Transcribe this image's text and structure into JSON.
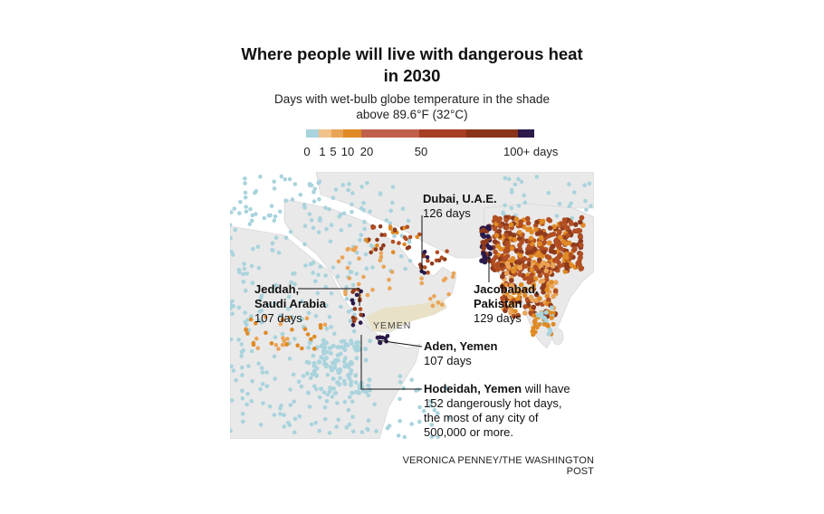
{
  "title_line1": "Where people will live with dangerous heat",
  "title_line2": "in 2030",
  "subtitle_line1": "Days with wet-bulb globe temperature in the shade",
  "subtitle_line2": "above 89.6°F (32°C)",
  "legend": {
    "ticks": [
      "0",
      "1",
      "5",
      "10",
      "20",
      "50",
      "100+ days"
    ],
    "colors": [
      "#a9d3dd",
      "#f2c28a",
      "#eaa458",
      "#df8a24",
      "#c0604a",
      "#a63e22",
      "#8a3419",
      "#2b1a4a"
    ]
  },
  "map": {
    "colors": {
      "land": "#e9e9e9",
      "water": "#ffffff",
      "yemen": "#e8e1c8",
      "none": "#a9d3dd",
      "low": "#eaa458",
      "mid": "#df8a24",
      "high": "#b14e22",
      "very_high": "#8f3a1c",
      "extreme": "#2b1a4a"
    },
    "country_label": "YEMEN"
  },
  "annotations": {
    "dubai": {
      "name": "Dubai, U.A.E.",
      "days": "126 days"
    },
    "jeddah": {
      "name_line1": "Jeddah,",
      "name_line2": "Saudi Arabia",
      "days": "107 days"
    },
    "jacobabad": {
      "name_line1": "Jacobabad,",
      "name_line2": "Pakistan",
      "days": "129 days"
    },
    "aden": {
      "name": "Aden, Yemen",
      "days": "107 days"
    },
    "hodeidah": {
      "name": "Hodeidah, Yemen",
      "text_line1": " will have",
      "text_line2": "152 dangerously hot days,",
      "text_line3": "the most of any city of",
      "text_line4": "500,000 or more."
    }
  },
  "credit": "VERONICA PENNEY/THE WASHINGTON POST"
}
